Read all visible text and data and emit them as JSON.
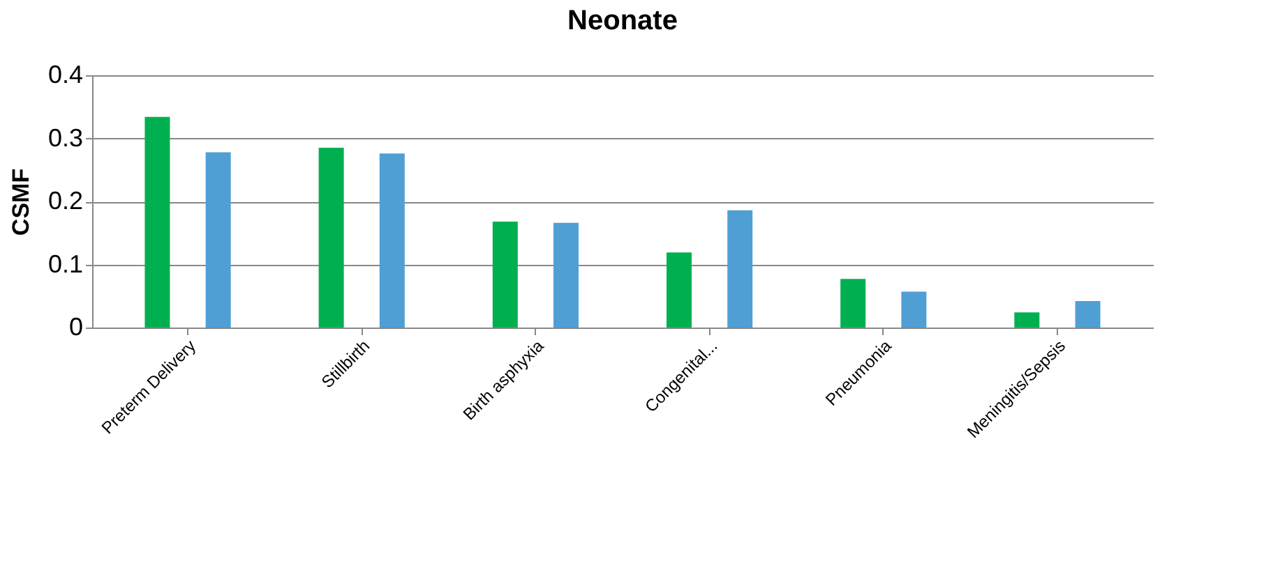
{
  "chart_data": {
    "type": "bar",
    "title": "Neonate",
    "ylabel": "CSMF",
    "categories": [
      "Preterm Delivery",
      "Stillbirth",
      "Birth asphyxia",
      "Congenital...",
      "Pneumonia",
      "Meningitis/Sepsis"
    ],
    "series": [
      {
        "color": "#00b050",
        "values": [
          0.334,
          0.285,
          0.168,
          0.119,
          0.077,
          0.024
        ]
      },
      {
        "color": "#4f9fd4",
        "values": [
          0.278,
          0.276,
          0.166,
          0.186,
          0.057,
          0.042
        ]
      }
    ],
    "ylim": [
      0,
      0.4
    ],
    "yticks": [
      0,
      0.1,
      0.2,
      0.3,
      0.4
    ],
    "grid": "y"
  }
}
